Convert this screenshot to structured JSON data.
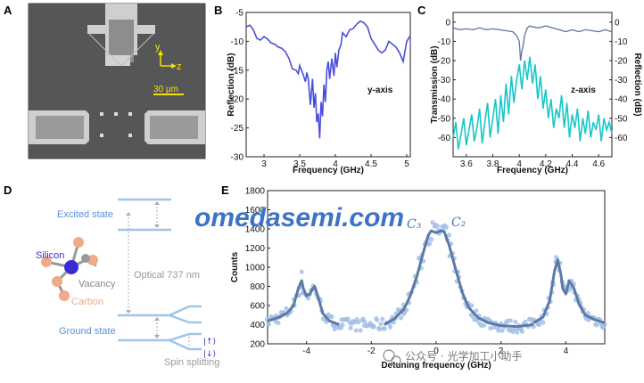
{
  "figure": {
    "panel_labels": [
      "A",
      "B",
      "C",
      "D",
      "E"
    ],
    "watermark": "omedasemi.com",
    "credit": "公众号 · 光学加工小助手"
  },
  "panelA": {
    "axis_y": "y",
    "axis_z": "z",
    "scale": "30 μm"
  },
  "panelD": {
    "excited_state": "Excited state",
    "ground_state": "Ground state",
    "optical": "Optical 737 nm",
    "spin_splitting": "Spin splitting",
    "silicon": "Silicon",
    "vacancy": "Vacancy",
    "carbon": "Carbon",
    "spin_up": "|↑⟩",
    "spin_down": "|↓⟩",
    "colors": {
      "silicon": "#3a2bd6",
      "carbon": "#f0a989",
      "vacancy": "#9a9a9a",
      "levels": "#9fc5ea"
    }
  },
  "chart_data": [
    {
      "panel": "B",
      "type": "line",
      "xlabel": "Frequency (GHz)",
      "ylabel": "Reflection (dB)",
      "annotation": "y-axis",
      "xlim": [
        2.75,
        5.05
      ],
      "ylim": [
        -30,
        -5
      ],
      "xticks": [
        3,
        3.5,
        4,
        4.5,
        5
      ],
      "yticks": [
        -30,
        -25,
        -20,
        -15,
        -10,
        -5
      ],
      "color": "#4b4de0",
      "series": [
        {
          "x": [
            2.75,
            2.8,
            2.85,
            2.9,
            2.95,
            3.0,
            3.05,
            3.1,
            3.15,
            3.2,
            3.25,
            3.3,
            3.35,
            3.4,
            3.45,
            3.48,
            3.5,
            3.55,
            3.58,
            3.6,
            3.62,
            3.65,
            3.68,
            3.7,
            3.72,
            3.74,
            3.76,
            3.78,
            3.8,
            3.82,
            3.84,
            3.86,
            3.88,
            3.9,
            3.92,
            3.95,
            3.98,
            4.0,
            4.02,
            4.05,
            4.08,
            4.1,
            4.15,
            4.2,
            4.25,
            4.3,
            4.35,
            4.4,
            4.45,
            4.5,
            4.55,
            4.6,
            4.65,
            4.7,
            4.75,
            4.8,
            4.85,
            4.9,
            4.95,
            5.0,
            5.05
          ],
          "y": [
            -7.5,
            -7.2,
            -8.0,
            -9.5,
            -9.8,
            -9.2,
            -9.6,
            -10.3,
            -10.5,
            -11.0,
            -11.2,
            -11.8,
            -13.0,
            -14.8,
            -15.0,
            -15.6,
            -14.2,
            -15.8,
            -17.0,
            -15.4,
            -16.5,
            -21.0,
            -16.5,
            -21.5,
            -19.0,
            -24.0,
            -22.5,
            -26.8,
            -20.5,
            -23.0,
            -17.5,
            -20.5,
            -15.0,
            -13.5,
            -16.5,
            -13.0,
            -16.0,
            -12.0,
            -14.5,
            -11.5,
            -10.5,
            -8.5,
            -9.2,
            -8.0,
            -7.8,
            -7.0,
            -6.5,
            -6.8,
            -7.5,
            -9.5,
            -10.5,
            -11.5,
            -12.0,
            -11.5,
            -10.0,
            -10.5,
            -11.0,
            -12.0,
            -13.5,
            -10.0,
            -9.0
          ]
        }
      ]
    },
    {
      "panel": "C",
      "type": "line",
      "xlabel": "Frequency (GHz)",
      "ylabel_left": "Transmission (dB)",
      "ylabel_right": "Reflection (dB)",
      "annotation": "z-axis",
      "xlim": [
        3.5,
        4.7
      ],
      "ylim": [
        -70,
        5
      ],
      "xticks": [
        3.6,
        3.8,
        4.0,
        4.2,
        4.4,
        4.6
      ],
      "yticks": [
        -60,
        -50,
        -40,
        -30,
        -20,
        -10,
        0
      ],
      "series": [
        {
          "name": "Transmission",
          "color": "#19c7c9",
          "x": [
            3.5,
            3.52,
            3.54,
            3.56,
            3.58,
            3.6,
            3.62,
            3.64,
            3.66,
            3.68,
            3.7,
            3.72,
            3.74,
            3.76,
            3.78,
            3.8,
            3.82,
            3.84,
            3.86,
            3.88,
            3.9,
            3.92,
            3.94,
            3.96,
            3.98,
            4.0,
            4.02,
            4.04,
            4.06,
            4.08,
            4.1,
            4.12,
            4.14,
            4.16,
            4.18,
            4.2,
            4.22,
            4.24,
            4.26,
            4.28,
            4.3,
            4.32,
            4.34,
            4.36,
            4.38,
            4.4,
            4.42,
            4.44,
            4.46,
            4.48,
            4.5,
            4.52,
            4.54,
            4.56,
            4.58,
            4.6,
            4.62,
            4.64,
            4.66,
            4.68,
            4.7
          ],
          "y": [
            -60,
            -52,
            -66,
            -58,
            -50,
            -64,
            -56,
            -48,
            -62,
            -55,
            -45,
            -63,
            -52,
            -42,
            -60,
            -50,
            -40,
            -58,
            -38,
            -52,
            -32,
            -48,
            -28,
            -42,
            -30,
            -22,
            -35,
            -20,
            -30,
            -18,
            -32,
            -22,
            -40,
            -28,
            -45,
            -35,
            -50,
            -40,
            -55,
            -45,
            -50,
            -38,
            -55,
            -42,
            -60,
            -48,
            -55,
            -45,
            -62,
            -50,
            -58,
            -46,
            -60,
            -52,
            -56,
            -48,
            -62,
            -50,
            -56,
            -52,
            -58
          ]
        },
        {
          "name": "Reflection",
          "color": "#5f72a8",
          "x": [
            3.5,
            3.55,
            3.6,
            3.65,
            3.7,
            3.75,
            3.8,
            3.85,
            3.9,
            3.95,
            3.98,
            4.0,
            4.01,
            4.02,
            4.03,
            4.04,
            4.05,
            4.06,
            4.08,
            4.1,
            4.15,
            4.2,
            4.25,
            4.3,
            4.35,
            4.4,
            4.45,
            4.5,
            4.55,
            4.6,
            4.65,
            4.7
          ],
          "y": [
            -3,
            -4,
            -3.5,
            -4,
            -3,
            -4,
            -3.5,
            -4,
            -4.5,
            -5,
            -7,
            -10,
            -20,
            -15,
            -12,
            -7,
            -5,
            -3,
            -2,
            -2.5,
            -3,
            -2,
            -3,
            -4,
            -5,
            -4,
            -5,
            -4,
            -4.5,
            -5,
            -4,
            -5
          ]
        }
      ]
    },
    {
      "panel": "E",
      "type": "scatter",
      "xlabel": "Detuning frequency (GHz)",
      "ylabel": "Counts",
      "xlim": [
        -5.2,
        5.2
      ],
      "ylim": [
        200,
        1800
      ],
      "xticks": [
        -4,
        -2,
        0,
        2,
        4
      ],
      "yticks": [
        200,
        400,
        600,
        800,
        1000,
        1200,
        1400,
        1600,
        1800
      ],
      "annotations": [
        "C₃",
        "C₂"
      ],
      "colors": {
        "points": "#a9c4ea",
        "fit": "#5d7aa6"
      },
      "fit_segments": [
        {
          "x": [
            -5.2,
            -4.9,
            -4.6,
            -4.4,
            -4.25,
            -4.15,
            -4.1,
            -4.0,
            -3.9,
            -3.8,
            -3.75,
            -3.65,
            -3.5,
            -3.3,
            -3.0
          ],
          "y": [
            440,
            470,
            520,
            600,
            780,
            860,
            780,
            700,
            720,
            780,
            800,
            700,
            520,
            440,
            400
          ]
        },
        {
          "x": [
            -1.6,
            -1.3,
            -1.0,
            -0.8,
            -0.6,
            -0.4,
            -0.25,
            -0.15,
            0.0,
            0.15,
            0.25,
            0.4,
            0.6,
            0.8,
            1.0,
            1.3,
            1.6,
            2.0,
            2.5,
            3.0
          ],
          "y": [
            400,
            460,
            560,
            700,
            900,
            1150,
            1330,
            1380,
            1360,
            1380,
            1370,
            1230,
            980,
            740,
            580,
            470,
            420,
            390,
            380,
            400
          ]
        },
        {
          "x": [
            3.0,
            3.3,
            3.5,
            3.65,
            3.75,
            3.85,
            3.9,
            4.0,
            4.1,
            4.25,
            4.4,
            4.6,
            4.9,
            5.2
          ],
          "y": [
            420,
            480,
            650,
            960,
            1080,
            920,
            780,
            720,
            860,
            780,
            620,
            500,
            450,
            420
          ]
        }
      ]
    }
  ]
}
